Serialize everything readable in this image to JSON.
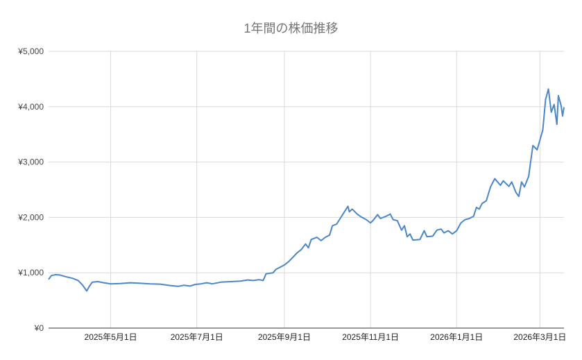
{
  "chart_data": {
    "type": "line",
    "title": "1年間の株価推移",
    "xlabel": "",
    "ylabel": "",
    "ylim": [
      0,
      5000
    ],
    "y_ticks": [
      "¥0",
      "¥1,000",
      "¥2,000",
      "¥3,000",
      "¥4,000",
      "¥5,000"
    ],
    "y_tick_values": [
      0,
      1000,
      2000,
      3000,
      4000,
      5000
    ],
    "x_ticks": [
      "2025年5月1日",
      "2025年7月1日",
      "2025年9月1日",
      "2025年11月1日",
      "2026年1月1日",
      "2026年3月1日"
    ],
    "x_range": [
      "2025-03-18",
      "2026-03-18"
    ],
    "grid": true,
    "legend": "none",
    "line_color": "#4a86c8",
    "series": [
      {
        "name": "株価",
        "points": [
          [
            "2025-03-18",
            880
          ],
          [
            "2025-03-20",
            950
          ],
          [
            "2025-03-23",
            965
          ],
          [
            "2025-03-26",
            960
          ],
          [
            "2025-03-30",
            930
          ],
          [
            "2025-04-04",
            900
          ],
          [
            "2025-04-08",
            860
          ],
          [
            "2025-04-11",
            780
          ],
          [
            "2025-04-14",
            670
          ],
          [
            "2025-04-16",
            760
          ],
          [
            "2025-04-18",
            830
          ],
          [
            "2025-04-22",
            840
          ],
          [
            "2025-04-26",
            820
          ],
          [
            "2025-05-01",
            800
          ],
          [
            "2025-05-08",
            805
          ],
          [
            "2025-05-15",
            820
          ],
          [
            "2025-05-22",
            810
          ],
          [
            "2025-05-29",
            800
          ],
          [
            "2025-06-05",
            795
          ],
          [
            "2025-06-12",
            770
          ],
          [
            "2025-06-18",
            755
          ],
          [
            "2025-06-22",
            775
          ],
          [
            "2025-06-26",
            760
          ],
          [
            "2025-06-30",
            790
          ],
          [
            "2025-07-04",
            800
          ],
          [
            "2025-07-08",
            820
          ],
          [
            "2025-07-12",
            800
          ],
          [
            "2025-07-18",
            830
          ],
          [
            "2025-07-25",
            840
          ],
          [
            "2025-08-01",
            850
          ],
          [
            "2025-08-06",
            870
          ],
          [
            "2025-08-10",
            860
          ],
          [
            "2025-08-14",
            875
          ],
          [
            "2025-08-17",
            860
          ],
          [
            "2025-08-19",
            980
          ],
          [
            "2025-08-24",
            1000
          ],
          [
            "2025-08-26",
            1060
          ],
          [
            "2025-08-29",
            1100
          ],
          [
            "2025-09-01",
            1140
          ],
          [
            "2025-09-04",
            1200
          ],
          [
            "2025-09-07",
            1280
          ],
          [
            "2025-09-10",
            1360
          ],
          [
            "2025-09-13",
            1420
          ],
          [
            "2025-09-16",
            1520
          ],
          [
            "2025-09-18",
            1450
          ],
          [
            "2025-09-20",
            1600
          ],
          [
            "2025-09-24",
            1640
          ],
          [
            "2025-09-27",
            1580
          ],
          [
            "2025-09-30",
            1640
          ],
          [
            "2025-10-03",
            1680
          ],
          [
            "2025-10-05",
            1850
          ],
          [
            "2025-10-08",
            1880
          ],
          [
            "2025-10-11",
            2000
          ],
          [
            "2025-10-14",
            2120
          ],
          [
            "2025-10-16",
            2200
          ],
          [
            "2025-10-17",
            2100
          ],
          [
            "2025-10-19",
            2150
          ],
          [
            "2025-10-23",
            2050
          ],
          [
            "2025-10-26",
            2000
          ],
          [
            "2025-10-29",
            1960
          ],
          [
            "2025-11-01",
            1900
          ],
          [
            "2025-11-03",
            1950
          ],
          [
            "2025-11-06",
            2050
          ],
          [
            "2025-11-08",
            1980
          ],
          [
            "2025-11-12",
            2020
          ],
          [
            "2025-11-15",
            2060
          ],
          [
            "2025-11-17",
            1960
          ],
          [
            "2025-11-20",
            1940
          ],
          [
            "2025-11-23",
            1770
          ],
          [
            "2025-11-25",
            1850
          ],
          [
            "2025-11-27",
            1650
          ],
          [
            "2025-11-29",
            1700
          ],
          [
            "2025-12-01",
            1590
          ],
          [
            "2025-12-06",
            1600
          ],
          [
            "2025-12-09",
            1760
          ],
          [
            "2025-12-11",
            1650
          ],
          [
            "2025-12-15",
            1660
          ],
          [
            "2025-12-18",
            1770
          ],
          [
            "2025-12-21",
            1790
          ],
          [
            "2025-12-23",
            1720
          ],
          [
            "2025-12-26",
            1760
          ],
          [
            "2025-12-29",
            1700
          ],
          [
            "2026-01-01",
            1760
          ],
          [
            "2026-01-04",
            1900
          ],
          [
            "2026-01-07",
            1960
          ],
          [
            "2026-01-10",
            1980
          ],
          [
            "2026-01-13",
            2020
          ],
          [
            "2026-01-15",
            2180
          ],
          [
            "2026-01-17",
            2150
          ],
          [
            "2026-01-19",
            2250
          ],
          [
            "2026-01-22",
            2300
          ],
          [
            "2026-01-25",
            2550
          ],
          [
            "2026-01-28",
            2700
          ],
          [
            "2026-01-30",
            2640
          ],
          [
            "2026-02-01",
            2580
          ],
          [
            "2026-02-03",
            2660
          ],
          [
            "2026-02-07",
            2560
          ],
          [
            "2026-02-09",
            2640
          ],
          [
            "2026-02-12",
            2450
          ],
          [
            "2026-02-14",
            2380
          ],
          [
            "2026-02-16",
            2640
          ],
          [
            "2026-02-18",
            2550
          ],
          [
            "2026-02-21",
            2740
          ],
          [
            "2026-02-24",
            3300
          ],
          [
            "2026-02-27",
            3220
          ],
          [
            "2026-03-01",
            3400
          ],
          [
            "2026-03-03",
            3580
          ],
          [
            "2026-03-05",
            4130
          ],
          [
            "2026-03-07",
            4320
          ],
          [
            "2026-03-09",
            3900
          ],
          [
            "2026-03-11",
            4040
          ],
          [
            "2026-03-13",
            3680
          ],
          [
            "2026-03-14",
            4200
          ],
          [
            "2026-03-16",
            4020
          ],
          [
            "2026-03-17",
            3830
          ],
          [
            "2026-03-18",
            3990
          ]
        ]
      }
    ]
  }
}
